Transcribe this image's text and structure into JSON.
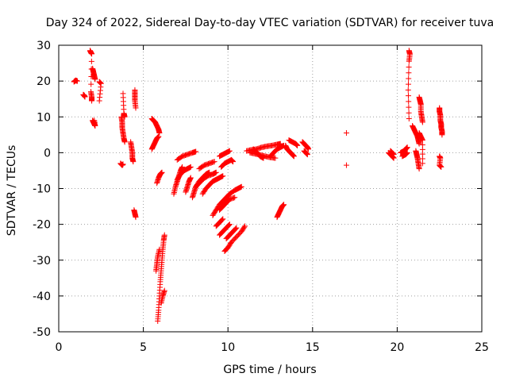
{
  "chart_data": {
    "type": "scatter",
    "title": "Day 324 of 2022, Sidereal Day-to-day VTEC variation (SDTVAR) for receiver tuva",
    "xlabel": "GPS time / hours",
    "ylabel": "SDTVAR / TECUs",
    "xlim": [
      0,
      25
    ],
    "ylim": [
      -50,
      30
    ],
    "xticks": [
      "0",
      "5",
      "10",
      "15",
      "20",
      "25"
    ],
    "yticks": [
      "-50",
      "-40",
      "-30",
      "-20",
      "-10",
      "0",
      "10",
      "20",
      "30"
    ],
    "grid": true,
    "marker": "+",
    "color": "#ff0000",
    "series": [
      {
        "name": "SDTVAR",
        "segments": [
          [
            [
              0.9,
              19.8
            ],
            [
              1.0,
              20.2
            ],
            [
              1.1,
              20.0
            ]
          ],
          [
            [
              1.45,
              16.2
            ],
            [
              1.5,
              16.0
            ],
            [
              1.55,
              15.6
            ]
          ],
          [
            [
              1.85,
              28.5
            ],
            [
              1.9,
              28.0
            ],
            [
              1.95,
              27.6
            ],
            [
              1.9,
              17.0
            ],
            [
              1.95,
              15.5
            ],
            [
              1.95,
              14.5
            ]
          ],
          [
            [
              2.0,
              23.5
            ],
            [
              2.05,
              22.5
            ],
            [
              2.1,
              21.5
            ],
            [
              2.15,
              20.5
            ]
          ],
          [
            [
              2.0,
              9.0
            ],
            [
              2.05,
              8.5
            ],
            [
              2.1,
              8.0
            ],
            [
              2.15,
              7.5
            ],
            [
              2.1,
              9.0
            ]
          ],
          [
            [
              2.4,
              19.8
            ],
            [
              2.5,
              19.3
            ],
            [
              2.4,
              14.5
            ]
          ],
          [
            [
              3.65,
              -3.0
            ],
            [
              3.75,
              -3.5
            ],
            [
              3.8,
              -3.2
            ]
          ],
          [
            [
              3.7,
              10.0
            ],
            [
              3.75,
              8.5
            ],
            [
              3.75,
              7.0
            ],
            [
              3.8,
              5.5
            ],
            [
              3.85,
              4.0
            ],
            [
              3.9,
              3.0
            ]
          ],
          [
            [
              3.8,
              16.5
            ],
            [
              3.85,
              11.0
            ],
            [
              3.9,
              10.0
            ]
          ],
          [
            [
              4.25,
              3.0
            ],
            [
              4.3,
              1.5
            ],
            [
              4.35,
              0.0
            ],
            [
              4.35,
              -1.5
            ],
            [
              4.4,
              -2.5
            ]
          ],
          [
            [
              4.5,
              17.5
            ],
            [
              4.5,
              16.0
            ],
            [
              4.5,
              14.5
            ],
            [
              4.55,
              12.5
            ]
          ],
          [
            [
              4.45,
              -16.0
            ],
            [
              4.5,
              -17.0
            ],
            [
              4.55,
              -18.0
            ]
          ],
          [
            [
              5.5,
              9.5
            ],
            [
              5.6,
              9.0
            ],
            [
              5.7,
              8.5
            ],
            [
              5.8,
              7.5
            ],
            [
              5.9,
              6.5
            ],
            [
              5.95,
              5.5
            ]
          ],
          [
            [
              5.5,
              1.0
            ],
            [
              5.6,
              2.0
            ],
            [
              5.7,
              3.0
            ],
            [
              5.8,
              4.0
            ],
            [
              5.9,
              4.5
            ]
          ],
          [
            [
              5.8,
              -8.5
            ],
            [
              5.9,
              -7.0
            ],
            [
              6.0,
              -6.0
            ],
            [
              6.1,
              -5.5
            ]
          ],
          [
            [
              5.85,
              -47
            ],
            [
              5.9,
              -44
            ],
            [
              5.95,
              -40
            ],
            [
              6.0,
              -36
            ],
            [
              6.05,
              -33
            ],
            [
              6.1,
              -30
            ],
            [
              6.15,
              -27
            ],
            [
              6.2,
              -24.5
            ],
            [
              6.25,
              -23
            ]
          ],
          [
            [
              5.75,
              -33
            ],
            [
              5.8,
              -31
            ],
            [
              5.85,
              -29
            ],
            [
              5.95,
              -27
            ]
          ],
          [
            [
              6.05,
              -42
            ],
            [
              6.15,
              -40
            ],
            [
              6.25,
              -38.5
            ]
          ],
          [
            [
              6.8,
              -11.5
            ],
            [
              6.9,
              -9.5
            ],
            [
              7.0,
              -8.0
            ],
            [
              7.1,
              -6.5
            ],
            [
              7.2,
              -5.0
            ],
            [
              7.3,
              -4.0
            ]
          ],
          [
            [
              7.0,
              -7.5
            ],
            [
              7.2,
              -6.0
            ],
            [
              7.4,
              -5.0
            ],
            [
              7.6,
              -4.5
            ],
            [
              7.8,
              -4.0
            ]
          ],
          [
            [
              7.5,
              -11.0
            ],
            [
              7.6,
              -9.5
            ],
            [
              7.7,
              -8.0
            ],
            [
              7.8,
              -7.0
            ]
          ],
          [
            [
              7.0,
              -2.0
            ],
            [
              7.3,
              -1.0
            ],
            [
              7.6,
              -0.5
            ],
            [
              7.9,
              0.0
            ],
            [
              8.1,
              0.3
            ]
          ],
          [
            [
              7.9,
              -12.5
            ],
            [
              8.0,
              -11.0
            ],
            [
              8.1,
              -9.5
            ],
            [
              8.3,
              -8.0
            ],
            [
              8.5,
              -7.0
            ],
            [
              8.7,
              -6.0
            ],
            [
              8.9,
              -5.5
            ]
          ],
          [
            [
              8.1,
              -9.5
            ],
            [
              8.3,
              -8.5
            ],
            [
              8.5,
              -7.5
            ],
            [
              8.8,
              -6.5
            ],
            [
              9.1,
              -6.0
            ],
            [
              9.3,
              -5.5
            ]
          ],
          [
            [
              8.5,
              -11.5
            ],
            [
              8.7,
              -10.0
            ],
            [
              8.9,
              -9.0
            ],
            [
              9.1,
              -8.0
            ],
            [
              9.3,
              -7.5
            ],
            [
              9.5,
              -7.0
            ],
            [
              9.7,
              -6.5
            ]
          ],
          [
            [
              8.3,
              -4.5
            ],
            [
              8.6,
              -3.5
            ],
            [
              8.9,
              -3.0
            ],
            [
              9.2,
              -2.5
            ]
          ],
          [
            [
              9.1,
              -17.5
            ],
            [
              9.3,
              -16.0
            ],
            [
              9.5,
              -14.5
            ],
            [
              9.7,
              -13.5
            ],
            [
              9.9,
              -12.5
            ],
            [
              10.1,
              -11.5
            ],
            [
              10.4,
              -10.5
            ],
            [
              10.6,
              -10.0
            ],
            [
              10.8,
              -9.5
            ]
          ],
          [
            [
              9.5,
              -16.0
            ],
            [
              9.7,
              -15.0
            ],
            [
              9.9,
              -14.0
            ],
            [
              10.1,
              -13.0
            ],
            [
              10.4,
              -12.5
            ]
          ],
          [
            [
              9.3,
              -20.5
            ],
            [
              9.5,
              -19.5
            ],
            [
              9.7,
              -18.5
            ]
          ],
          [
            [
              9.5,
              -23.0
            ],
            [
              9.7,
              -22.0
            ],
            [
              9.9,
              -21.0
            ],
            [
              10.1,
              -20.0
            ]
          ],
          [
            [
              9.5,
              -1.0
            ],
            [
              9.7,
              -0.5
            ],
            [
              9.9,
              0.0
            ],
            [
              10.1,
              0.5
            ]
          ],
          [
            [
              9.6,
              -4.0
            ],
            [
              9.8,
              -3.0
            ],
            [
              10.0,
              -2.5
            ],
            [
              10.2,
              -2.0
            ],
            [
              10.3,
              -2.5
            ]
          ],
          [
            [
              9.8,
              -27.5
            ],
            [
              10.0,
              -26.5
            ],
            [
              10.2,
              -25.0
            ],
            [
              10.5,
              -23.5
            ],
            [
              10.8,
              -22.0
            ],
            [
              11.0,
              -20.5
            ]
          ],
          [
            [
              9.9,
              -24.0
            ],
            [
              10.1,
              -23.0
            ],
            [
              10.3,
              -22.0
            ],
            [
              10.5,
              -21.0
            ]
          ],
          [
            [
              11.1,
              0.5
            ],
            [
              11.4,
              0.8
            ],
            [
              11.7,
              1.0
            ],
            [
              12.0,
              1.5
            ],
            [
              12.3,
              1.8
            ],
            [
              12.6,
              2.0
            ],
            [
              12.9,
              2.3
            ],
            [
              13.1,
              2.5
            ]
          ],
          [
            [
              11.3,
              0.0
            ],
            [
              11.6,
              -0.3
            ],
            [
              11.9,
              -0.6
            ],
            [
              12.2,
              -1.0
            ],
            [
              12.5,
              -1.3
            ],
            [
              12.8,
              -1.5
            ]
          ],
          [
            [
              11.5,
              1.0
            ],
            [
              11.7,
              0.0
            ],
            [
              11.9,
              -1.0
            ],
            [
              12.1,
              -1.5
            ]
          ],
          [
            [
              12.5,
              -1.0
            ],
            [
              12.7,
              0.0
            ],
            [
              12.9,
              1.0
            ],
            [
              13.1,
              1.5
            ],
            [
              13.3,
              2.0
            ]
          ],
          [
            [
              12.9,
              -18.0
            ],
            [
              13.0,
              -17.0
            ],
            [
              13.1,
              -16.0
            ],
            [
              13.2,
              -15.0
            ],
            [
              13.3,
              -14.5
            ]
          ],
          [
            [
              13.4,
              2.0
            ],
            [
              13.5,
              1.0
            ],
            [
              13.6,
              0.5
            ],
            [
              13.7,
              0.0
            ],
            [
              13.8,
              -0.5
            ],
            [
              13.9,
              -1.0
            ]
          ],
          [
            [
              13.6,
              3.5
            ],
            [
              13.8,
              3.0
            ],
            [
              14.0,
              2.5
            ],
            [
              14.1,
              2.0
            ]
          ],
          [
            [
              14.4,
              3.0
            ],
            [
              14.5,
              2.5
            ],
            [
              14.6,
              2.0
            ],
            [
              14.7,
              1.5
            ],
            [
              14.75,
              1.0
            ]
          ],
          [
            [
              14.5,
              0.5
            ],
            [
              14.6,
              0.0
            ],
            [
              14.7,
              -0.5
            ]
          ],
          [
            [
              17.0,
              5.5
            ]
          ],
          [
            [
              17.0,
              -3.5
            ]
          ],
          [
            [
              19.5,
              0.0
            ],
            [
              19.6,
              -0.5
            ],
            [
              19.7,
              -1.0
            ],
            [
              19.8,
              -1.5
            ]
          ],
          [
            [
              19.6,
              0.5
            ],
            [
              19.7,
              0.0
            ],
            [
              19.8,
              -0.5
            ]
          ],
          [
            [
              20.2,
              0.0
            ],
            [
              20.4,
              0.5
            ],
            [
              20.5,
              1.0
            ],
            [
              20.6,
              1.5
            ]
          ],
          [
            [
              20.3,
              -1.0
            ],
            [
              20.5,
              -0.5
            ],
            [
              20.6,
              0.0
            ]
          ],
          [
            [
              20.7,
              28.5
            ],
            [
              20.75,
              27.5
            ],
            [
              20.7,
              25.5
            ],
            [
              20.65,
              17.5
            ],
            [
              20.7,
              9.5
            ]
          ],
          [
            [
              20.9,
              7.5
            ],
            [
              21.0,
              6.5
            ],
            [
              21.1,
              5.5
            ],
            [
              21.2,
              4.5
            ],
            [
              21.25,
              3.5
            ],
            [
              21.3,
              2.5
            ]
          ],
          [
            [
              21.1,
              0.5
            ],
            [
              21.15,
              -0.5
            ],
            [
              21.2,
              -1.5
            ],
            [
              21.25,
              -3.0
            ],
            [
              21.3,
              -4.5
            ]
          ],
          [
            [
              21.3,
              15.5
            ],
            [
              21.35,
              14.5
            ],
            [
              21.4,
              13.5
            ],
            [
              21.4,
              11.5
            ],
            [
              21.45,
              10.0
            ],
            [
              21.5,
              8.5
            ]
          ],
          [
            [
              21.3,
              5.5
            ],
            [
              21.4,
              4.5
            ],
            [
              21.5,
              3.5
            ],
            [
              21.5,
              -3.0
            ]
          ],
          [
            [
              22.5,
              12.5
            ],
            [
              22.5,
              11.5
            ],
            [
              22.55,
              10.5
            ],
            [
              22.55,
              9.0
            ],
            [
              22.6,
              8.0
            ],
            [
              22.6,
              7.0
            ],
            [
              22.65,
              6.0
            ],
            [
              22.65,
              5.0
            ]
          ],
          [
            [
              22.5,
              -1.0
            ],
            [
              22.55,
              -1.5
            ],
            [
              22.5,
              -3.5
            ],
            [
              22.6,
              -4.0
            ]
          ]
        ]
      }
    ]
  }
}
